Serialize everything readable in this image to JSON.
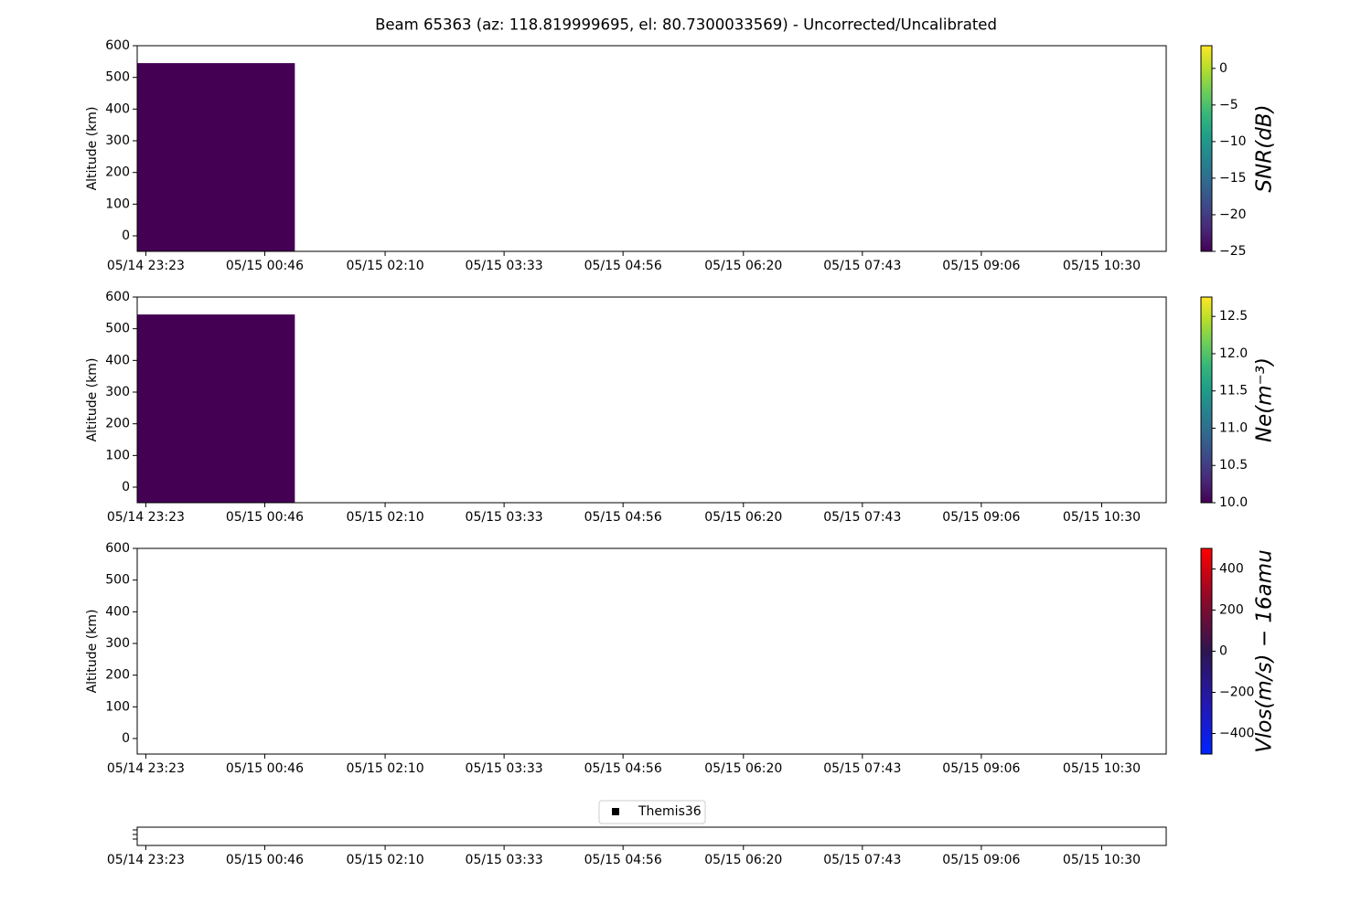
{
  "chart_data": [
    {
      "type": "heatmap",
      "title": "Beam 65363 (az: 118.819999695, el: 80.7300033569) - Uncorrected/Uncalibrated",
      "xlim": [
        "05/14 23:17",
        "05/15 11:15"
      ],
      "xticks": [
        "05/14 23:23",
        "05/15 00:46",
        "05/15 02:10",
        "05/15 03:33",
        "05/15 04:56",
        "05/15 06:20",
        "05/15 07:43",
        "05/15 09:06",
        "05/15 10:30"
      ],
      "ylabel": "Altitude (km)",
      "ylim": [
        -49,
        600
      ],
      "yticks": [
        0,
        100,
        200,
        300,
        400,
        500,
        600
      ],
      "cells": [
        {
          "x0": "05/14 23:17",
          "x1": "05/15 01:07",
          "y0": -49,
          "y1": 545,
          "value": -25
        }
      ],
      "colorbar": {
        "label": "SNR(dB)",
        "lim": [
          -25,
          3.1
        ],
        "ticks": [
          {
            "value": -25,
            "label": "−25"
          },
          {
            "value": -20,
            "label": "−20"
          },
          {
            "value": -15,
            "label": "−15"
          },
          {
            "value": -10,
            "label": "−10"
          },
          {
            "value": -5,
            "label": "−5"
          },
          0
        ],
        "colormap": [
          "#440154",
          "#482878",
          "#3e4989",
          "#31688e",
          "#26828e",
          "#1f9e89",
          "#35b779",
          "#6ece58",
          "#b5de2b",
          "#fde725"
        ]
      }
    },
    {
      "type": "heatmap",
      "xlim": [
        "05/14 23:17",
        "05/15 11:15"
      ],
      "xticks": [
        "05/14 23:23",
        "05/15 00:46",
        "05/15 02:10",
        "05/15 03:33",
        "05/15 04:56",
        "05/15 06:20",
        "05/15 07:43",
        "05/15 09:06",
        "05/15 10:30"
      ],
      "ylabel": "Altitude (km)",
      "ylim": [
        -49,
        600
      ],
      "yticks": [
        0,
        100,
        200,
        300,
        400,
        500,
        600
      ],
      "cells": [
        {
          "x0": "05/14 23:17",
          "x1": "05/15 01:07",
          "y0": -49,
          "y1": 545,
          "value": 10
        }
      ],
      "colorbar": {
        "label": "Ne(m⁻³)",
        "lim": [
          10,
          12.76
        ],
        "ticks": [
          {
            "value": 10,
            "label": "10.0"
          },
          10.5,
          {
            "value": 11,
            "label": "11.0"
          },
          11.5,
          {
            "value": 12,
            "label": "12.0"
          },
          12.5
        ],
        "colormap": [
          "#440154",
          "#482878",
          "#3e4989",
          "#31688e",
          "#26828e",
          "#1f9e89",
          "#35b779",
          "#6ece58",
          "#b5de2b",
          "#fde725"
        ]
      }
    },
    {
      "type": "heatmap",
      "xlim": [
        "05/14 23:17",
        "05/15 11:15"
      ],
      "xticks": [
        "05/14 23:23",
        "05/15 00:46",
        "05/15 02:10",
        "05/15 03:33",
        "05/15 04:56",
        "05/15 06:20",
        "05/15 07:43",
        "05/15 09:06",
        "05/15 10:30"
      ],
      "ylabel": "Altitude (km)",
      "ylim": [
        -49,
        600
      ],
      "yticks": [
        0,
        100,
        200,
        300,
        400,
        500,
        600
      ],
      "cells": [],
      "colorbar": {
        "label": "Vlos(m/s) − 16amu",
        "lim": [
          -500,
          500
        ],
        "ticks": [
          {
            "value": -400,
            "label": "−400"
          },
          {
            "value": -200,
            "label": "−200"
          },
          0,
          200,
          400
        ],
        "colormap": [
          "#0022ff",
          "#2418b0",
          "#2d1550",
          "#8c0a2a",
          "#ff0000"
        ]
      }
    },
    {
      "type": "scatter",
      "xlim": [
        "05/14 23:17",
        "05/15 11:15"
      ],
      "xticks": [
        "05/14 23:23",
        "05/15 00:46",
        "05/15 02:10",
        "05/15 03:33",
        "05/15 04:56",
        "05/15 06:20",
        "05/15 07:43",
        "05/15 09:06",
        "05/15 10:30"
      ],
      "series": [
        {
          "name": "Themis36",
          "color": "#000000",
          "values": []
        }
      ]
    }
  ]
}
